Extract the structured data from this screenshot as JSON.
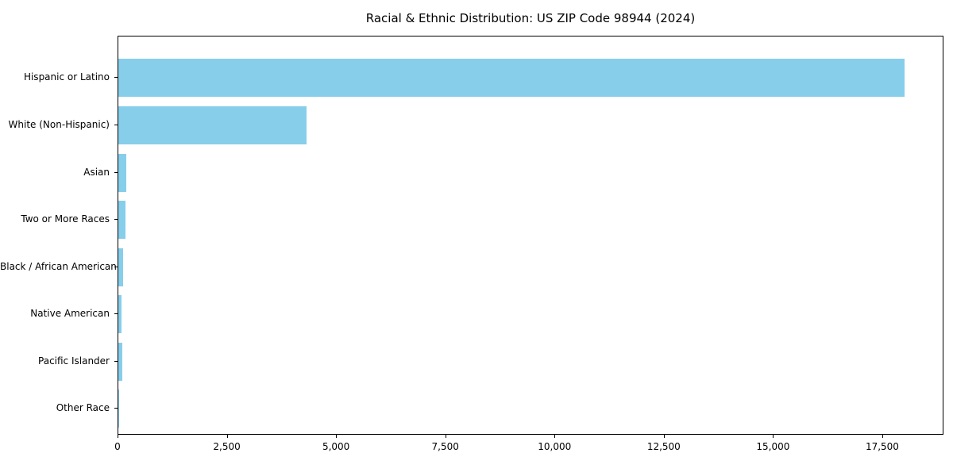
{
  "chart_data": {
    "type": "bar",
    "orientation": "horizontal",
    "title": "Racial & Ethnic Distribution: US ZIP Code 98944 (2024)",
    "categories": [
      "Hispanic or Latino",
      "White (Non-Hispanic)",
      "Asian",
      "Two or More Races",
      "Black / African American",
      "Native American",
      "Pacific Islander",
      "Other Race"
    ],
    "values": [
      18000,
      4300,
      190,
      160,
      110,
      80,
      95,
      15
    ],
    "xlabel": "",
    "ylabel": "",
    "xlim": [
      0,
      18900
    ],
    "xticks": [
      0,
      2500,
      5000,
      7500,
      10000,
      12500,
      15000,
      17500
    ],
    "xtick_labels": [
      "0",
      "2,500",
      "5,000",
      "7,500",
      "10,000",
      "12,500",
      "15,000",
      "17,500"
    ],
    "bar_color": "#87CEEB",
    "text_color": "#000000",
    "background_color": "#ffffff",
    "grid": false,
    "legend": null
  }
}
